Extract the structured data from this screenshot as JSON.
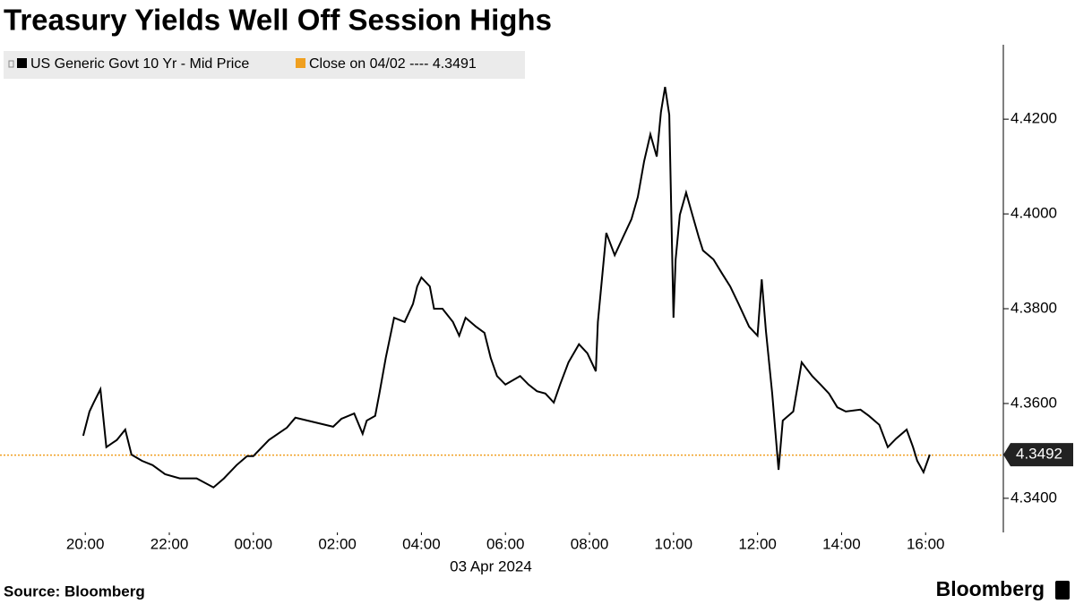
{
  "chart_data": {
    "type": "line",
    "title": "Treasury Yields Well Off Session Highs",
    "x_label": "03 Apr 2024",
    "source": "Source: Bloomberg",
    "brand": "Bloomberg",
    "xlim": [
      -2.03,
      21.85
    ],
    "xticks": [
      {
        "value": 0,
        "label": "20:00"
      },
      {
        "value": 2,
        "label": "22:00"
      },
      {
        "value": 4,
        "label": "00:00"
      },
      {
        "value": 6,
        "label": "02:00"
      },
      {
        "value": 8,
        "label": "04:00"
      },
      {
        "value": 10,
        "label": "06:00"
      },
      {
        "value": 12,
        "label": "08:00"
      },
      {
        "value": 14,
        "label": "10:00"
      },
      {
        "value": 16,
        "label": "12:00"
      },
      {
        "value": 18,
        "label": "14:00"
      },
      {
        "value": 20,
        "label": "16:00"
      }
    ],
    "ylim": [
      4.3328,
      4.4357
    ],
    "yticks": [
      {
        "value": 4.34,
        "label": "4.3400"
      },
      {
        "value": 4.36,
        "label": "4.3600"
      },
      {
        "value": 4.38,
        "label": "4.3800"
      },
      {
        "value": 4.4,
        "label": "4.4000"
      },
      {
        "value": 4.42,
        "label": "4.4200"
      }
    ],
    "x": [
      -0.05,
      0.1,
      0.2,
      0.36,
      0.5,
      0.75,
      0.95,
      1.1,
      1.35,
      1.6,
      1.9,
      2.25,
      2.65,
      3.05,
      3.3,
      3.6,
      3.85,
      4.0,
      4.37,
      4.8,
      5.0,
      5.9,
      6.1,
      6.4,
      6.6,
      6.7,
      6.9,
      7.0,
      7.15,
      7.35,
      7.6,
      7.8,
      7.9,
      8.0,
      8.2,
      8.3,
      8.5,
      8.75,
      8.9,
      9.05,
      9.3,
      9.5,
      9.65,
      9.8,
      10.0,
      10.35,
      10.55,
      10.75,
      10.95,
      11.15,
      11.3,
      11.5,
      11.75,
      11.95,
      12.15,
      12.2,
      12.3,
      12.4,
      12.6,
      12.8,
      13.0,
      13.15,
      13.3,
      13.45,
      13.6,
      13.7,
      13.8,
      13.9,
      14.0,
      14.05,
      14.15,
      14.3,
      14.45,
      14.6,
      14.7,
      14.95,
      15.15,
      15.35,
      15.55,
      15.8,
      16.0,
      16.1,
      16.2,
      16.35,
      16.5,
      16.6,
      16.85,
      17.05,
      17.3,
      17.5,
      17.7,
      17.9,
      18.1,
      18.45,
      18.65,
      18.9,
      19.1,
      19.3,
      19.55,
      19.7,
      19.8,
      19.95,
      20.1
    ],
    "series": [
      {
        "name": "US Generic Govt 10 Yr - Mid Price",
        "color": "#000000",
        "values": [
          4.3532,
          4.3583,
          4.3602,
          4.363,
          4.3508,
          4.3523,
          4.3545,
          4.3492,
          4.3479,
          4.347,
          4.3451,
          4.3442,
          4.3442,
          4.3423,
          4.3442,
          4.347,
          4.3489,
          4.3489,
          4.3523,
          4.3549,
          4.357,
          4.3551,
          4.3568,
          4.3579,
          4.3536,
          4.3564,
          4.3574,
          4.3621,
          4.3696,
          4.3781,
          4.3772,
          4.381,
          4.3847,
          4.3866,
          4.3847,
          4.38,
          4.38,
          4.3772,
          4.3743,
          4.3781,
          4.3762,
          4.3749,
          4.3696,
          4.3658,
          4.364,
          4.3658,
          4.364,
          4.3626,
          4.3621,
          4.3602,
          4.364,
          4.3687,
          4.3725,
          4.3706,
          4.3668,
          4.3772,
          4.3866,
          4.396,
          4.3913,
          4.3951,
          4.3989,
          4.4036,
          4.4111,
          4.4168,
          4.4121,
          4.4215,
          4.4268,
          4.4209,
          4.3781,
          4.3904,
          4.3998,
          4.4045,
          4.3998,
          4.3951,
          4.3923,
          4.3904,
          4.3875,
          4.3847,
          4.381,
          4.3762,
          4.3743,
          4.3862,
          4.3753,
          4.3621,
          4.346,
          4.3564,
          4.3583,
          4.3687,
          4.3658,
          4.364,
          4.3621,
          4.3592,
          4.3583,
          4.3587,
          4.3574,
          4.3555,
          4.3508,
          4.3526,
          4.3545,
          4.3508,
          4.3479,
          4.3455,
          4.3492
        ],
        "last_value_label": "4.3492"
      }
    ],
    "reference_line": {
      "name": "Close on 04/02 ---- 4.3491",
      "value": 4.3491,
      "color": "#f0a020"
    }
  }
}
